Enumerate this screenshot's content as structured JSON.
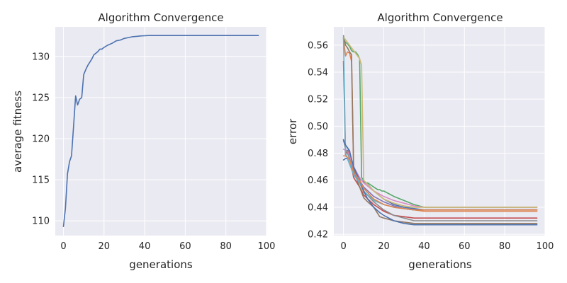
{
  "colors": {
    "background": "#ffffff",
    "axes_face": "#eaeaf2",
    "grid": "#ffffff",
    "text": "#262626",
    "palette": [
      "#4c72b0",
      "#dd8452",
      "#55a868",
      "#c44e52",
      "#8172b3",
      "#937860",
      "#da8bc3",
      "#8c8c8c",
      "#ccb974",
      "#64b5cd"
    ]
  },
  "chart_data": [
    {
      "type": "line",
      "title": "Algorithm Convergence",
      "xlabel": "generations",
      "ylabel": "average fitness",
      "xlim": [
        -4,
        100
      ],
      "ylim": [
        108.2,
        133.6
      ],
      "xticks": [
        0,
        20,
        40,
        60,
        80,
        100
      ],
      "yticks": [
        110,
        115,
        120,
        125,
        130
      ],
      "grid": true,
      "series": [
        {
          "color": "#4c72b0",
          "x": [
            0,
            1,
            2,
            3,
            4,
            5,
            6,
            7,
            8,
            9,
            10,
            11,
            12,
            13,
            14,
            15,
            16,
            17,
            18,
            19,
            20,
            22,
            24,
            26,
            28,
            30,
            32,
            34,
            36,
            38,
            40,
            42,
            45,
            50,
            60,
            70,
            80,
            90,
            96
          ],
          "y": [
            109.3,
            111.5,
            115.7,
            117.2,
            117.9,
            121.5,
            125.2,
            124.1,
            124.8,
            125.0,
            127.8,
            128.4,
            128.9,
            129.3,
            129.7,
            130.2,
            130.4,
            130.6,
            130.9,
            130.9,
            131.1,
            131.4,
            131.6,
            131.9,
            132.0,
            132.2,
            132.3,
            132.4,
            132.45,
            132.5,
            132.52,
            132.55,
            132.55,
            132.55,
            132.55,
            132.55,
            132.55,
            132.55,
            132.55
          ]
        }
      ]
    },
    {
      "type": "line",
      "title": "Algorithm Convergence",
      "xlabel": "generations",
      "ylabel": "error",
      "xlim": [
        -4.8,
        100
      ],
      "ylim": [
        0.419,
        0.5735
      ],
      "xticks": [
        0,
        20,
        40,
        60,
        80,
        100
      ],
      "yticks": [
        0.42,
        0.44,
        0.46,
        0.48,
        0.5,
        0.52,
        0.54,
        0.56
      ],
      "grid": true,
      "series": [
        {
          "color": "#4c72b0",
          "x": [
            0,
            1,
            2,
            3,
            5,
            8,
            12,
            15,
            20,
            25,
            30,
            35,
            40,
            96
          ],
          "y": [
            0.475,
            0.476,
            0.476,
            0.472,
            0.465,
            0.461,
            0.457,
            0.452,
            0.446,
            0.442,
            0.44,
            0.439,
            0.438,
            0.438
          ]
        },
        {
          "color": "#dd8452",
          "x": [
            0,
            1,
            2,
            3,
            4,
            5,
            6,
            8,
            10,
            15,
            20,
            25,
            30,
            35,
            40,
            96
          ],
          "y": [
            0.565,
            0.552,
            0.555,
            0.554,
            0.548,
            0.47,
            0.462,
            0.458,
            0.451,
            0.446,
            0.442,
            0.44,
            0.439,
            0.438,
            0.437,
            0.437
          ]
        },
        {
          "color": "#55a868",
          "x": [
            0,
            1,
            2,
            3,
            4,
            5,
            6,
            7,
            8,
            9,
            10,
            11,
            12,
            13,
            14,
            15,
            16,
            17,
            18,
            19,
            20,
            25,
            30,
            35,
            40,
            96
          ],
          "y": [
            0.565,
            0.562,
            0.561,
            0.559,
            0.556,
            0.555,
            0.555,
            0.553,
            0.55,
            0.462,
            0.46,
            0.458,
            0.458,
            0.457,
            0.456,
            0.455,
            0.454,
            0.453,
            0.453,
            0.452,
            0.452,
            0.448,
            0.445,
            0.442,
            0.44,
            0.44
          ]
        },
        {
          "color": "#c44e52",
          "x": [
            0,
            1,
            2,
            3,
            5,
            8,
            10,
            15,
            20,
            25,
            30,
            35,
            40,
            96
          ],
          "y": [
            0.548,
            0.479,
            0.482,
            0.478,
            0.462,
            0.455,
            0.449,
            0.442,
            0.437,
            0.434,
            0.433,
            0.432,
            0.432,
            0.432
          ]
        },
        {
          "color": "#8172b3",
          "x": [
            0,
            1,
            2,
            3,
            5,
            8,
            10,
            15,
            20,
            25,
            30,
            35,
            40,
            96
          ],
          "y": [
            0.489,
            0.486,
            0.484,
            0.482,
            0.468,
            0.46,
            0.455,
            0.448,
            0.444,
            0.441,
            0.439,
            0.438,
            0.438,
            0.438
          ]
        },
        {
          "color": "#937860",
          "x": [
            0,
            1,
            2,
            3,
            4,
            5,
            6,
            8,
            10,
            12,
            15,
            18,
            20,
            25,
            30,
            35,
            40,
            96
          ],
          "y": [
            0.567,
            0.56,
            0.558,
            0.555,
            0.553,
            0.469,
            0.463,
            0.455,
            0.447,
            0.444,
            0.44,
            0.433,
            0.432,
            0.43,
            0.429,
            0.428,
            0.428,
            0.428
          ]
        },
        {
          "color": "#da8bc3",
          "x": [
            0,
            1,
            2,
            3,
            5,
            8,
            10,
            15,
            20,
            25,
            30,
            35,
            40,
            96
          ],
          "y": [
            0.483,
            0.482,
            0.481,
            0.478,
            0.47,
            0.462,
            0.458,
            0.452,
            0.448,
            0.445,
            0.443,
            0.441,
            0.44,
            0.44
          ]
        },
        {
          "color": "#8c8c8c",
          "x": [
            0,
            1,
            2,
            3,
            5,
            8,
            10,
            15,
            20,
            25,
            30,
            35,
            40,
            96
          ],
          "y": [
            0.49,
            0.483,
            0.48,
            0.476,
            0.466,
            0.458,
            0.452,
            0.444,
            0.438,
            0.434,
            0.432,
            0.43,
            0.43,
            0.43
          ]
        },
        {
          "color": "#ccb974",
          "x": [
            0,
            1,
            2,
            3,
            4,
            5,
            6,
            7,
            8,
            9,
            10,
            15,
            20,
            25,
            30,
            35,
            40,
            96
          ],
          "y": [
            0.566,
            0.564,
            0.562,
            0.56,
            0.558,
            0.556,
            0.554,
            0.552,
            0.55,
            0.545,
            0.46,
            0.452,
            0.446,
            0.443,
            0.441,
            0.44,
            0.44,
            0.44
          ]
        },
        {
          "color": "#64b5cd",
          "x": [
            0,
            1,
            2,
            3,
            5,
            8,
            10,
            15,
            20,
            25,
            30,
            35,
            40,
            96
          ],
          "y": [
            0.566,
            0.48,
            0.476,
            0.472,
            0.464,
            0.458,
            0.452,
            0.445,
            0.442,
            0.44,
            0.439,
            0.438,
            0.438,
            0.438
          ]
        },
        {
          "color": "#4c72b0",
          "x": [
            0,
            1,
            2,
            3,
            5,
            8,
            10,
            12,
            15,
            18,
            20,
            25,
            30,
            35,
            40,
            96
          ],
          "y": [
            0.49,
            0.486,
            0.484,
            0.481,
            0.47,
            0.46,
            0.452,
            0.446,
            0.44,
            0.436,
            0.434,
            0.43,
            0.428,
            0.427,
            0.427,
            0.427
          ]
        },
        {
          "color": "#dd8452",
          "x": [
            0,
            1,
            2,
            3,
            5,
            8,
            10,
            15,
            20,
            25,
            30,
            35,
            40,
            96
          ],
          "y": [
            0.478,
            0.478,
            0.477,
            0.475,
            0.466,
            0.46,
            0.454,
            0.446,
            0.442,
            0.44,
            0.439,
            0.438,
            0.438,
            0.438
          ]
        }
      ]
    }
  ]
}
